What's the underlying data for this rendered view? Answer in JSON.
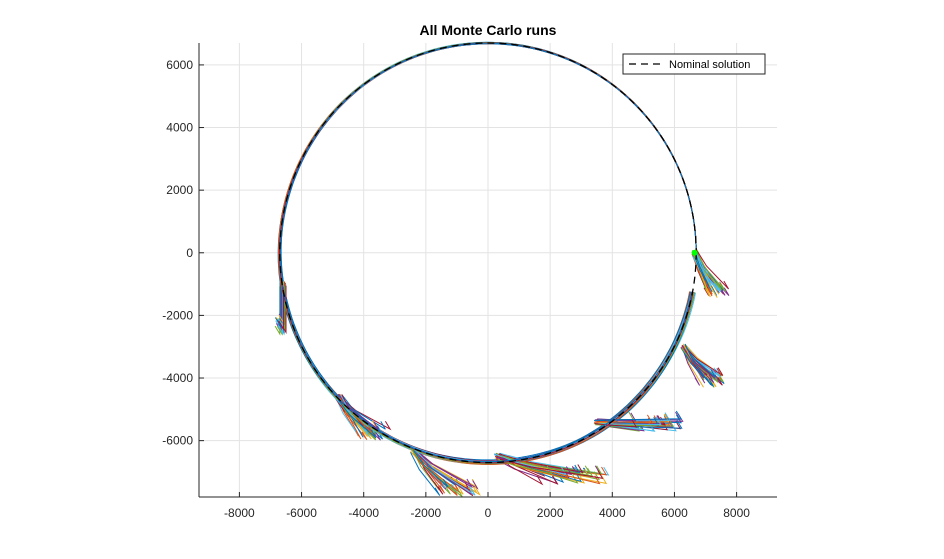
{
  "chart_data": {
    "type": "line",
    "title": "All Monte Carlo runs",
    "xlabel": "",
    "ylabel": "",
    "xlim": [
      -9300,
      9300
    ],
    "ylim": [
      -7800,
      6700
    ],
    "x_ticks": [
      -8000,
      -6000,
      -4000,
      -2000,
      0,
      2000,
      4000,
      6000,
      8000
    ],
    "y_ticks": [
      -6000,
      -4000,
      -2000,
      0,
      2000,
      4000,
      6000
    ],
    "x_tick_labels": [
      "-8000",
      "-6000",
      "-4000",
      "-2000",
      "0",
      "2000",
      "4000",
      "6000",
      "8000"
    ],
    "y_tick_labels": [
      "-6000",
      "-4000",
      "-2000",
      "0",
      "2000",
      "4000",
      "6000"
    ],
    "grid": true,
    "equal_axes": true,
    "legend": {
      "position": "top-right",
      "entries": [
        "Nominal solution"
      ]
    },
    "nominal_solution": {
      "name": "Nominal solution",
      "style": "dashed",
      "color": "#000000",
      "shape": "circle",
      "center": [
        0,
        0
      ],
      "radius": 6700
    },
    "start_marker": {
      "x": 6650,
      "y": 0,
      "color": "#00ff00"
    },
    "monte_carlo_runs": {
      "count_shown_approx": 50,
      "color_cycle": [
        "#0072BD",
        "#D95319",
        "#EDB120",
        "#7E2F8E",
        "#77AC30",
        "#4DBEEE",
        "#A2142F"
      ],
      "radius_spread": 140,
      "maneuver_excursions": [
        {
          "start_x": 6650,
          "start_y": 0,
          "max_x": 7700,
          "min_y": -1450
        },
        {
          "start_x": 6300,
          "start_y": -3000,
          "max_x": 7600,
          "min_y": -4300
        },
        {
          "start_x": 3500,
          "start_y": -5400,
          "max_x": 6300,
          "min_y": -5700
        },
        {
          "start_x": 300,
          "start_y": -6500,
          "max_x": 3900,
          "min_y": -7400
        },
        {
          "start_x": -2400,
          "start_y": -6300,
          "max_x": -300,
          "min_y": -7800
        },
        {
          "start_x": -4800,
          "start_y": -4600,
          "max_x": -3200,
          "min_y": -6000
        },
        {
          "start_x": -6600,
          "start_y": -1000,
          "max_x": -6600,
          "min_y": -2600
        }
      ]
    }
  }
}
